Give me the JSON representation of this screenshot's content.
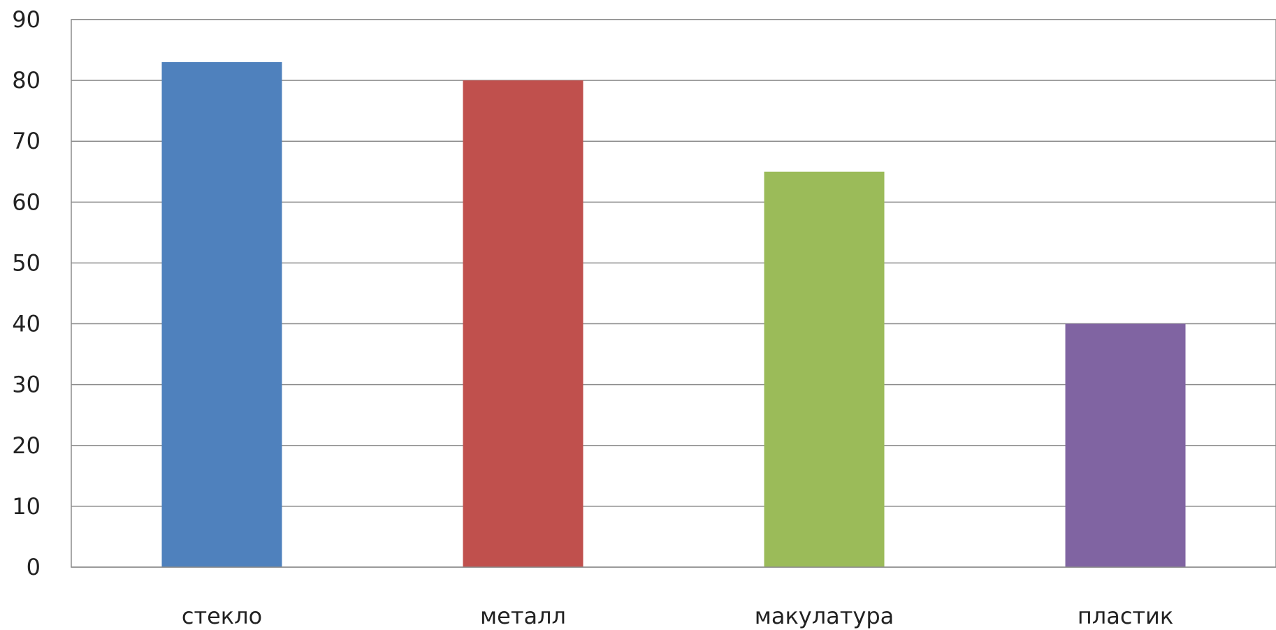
{
  "chart_data": {
    "type": "bar",
    "categories": [
      "стекло",
      "металл",
      "макулатура",
      "пластик"
    ],
    "values": [
      83,
      80,
      65,
      40
    ],
    "bar_colors": [
      "#4f81bd",
      "#c0504d",
      "#9bbb59",
      "#8064a2"
    ],
    "title": "",
    "xlabel": "",
    "ylabel": "",
    "ylim": [
      0,
      90
    ],
    "yticks": [
      "0",
      "10",
      "20",
      "30",
      "40",
      "50",
      "60",
      "70",
      "80",
      "90"
    ],
    "grid": true,
    "legend": "none"
  }
}
